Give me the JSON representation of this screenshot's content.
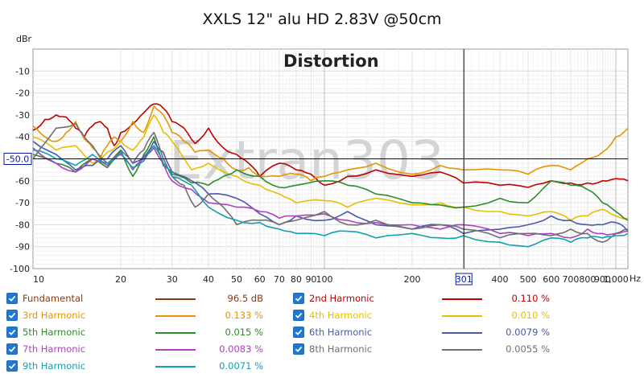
{
  "chart_data": {
    "type": "line",
    "title": "XXLS 12\" alu HD 2.83V @50cm",
    "annotation": "Distortion",
    "watermark": "Extran303",
    "ylabel": "dBr",
    "xunit": "Hz",
    "xscale": "log",
    "xlim": [
      10,
      1100
    ],
    "ylim": [
      -100,
      0
    ],
    "grid": true,
    "xticks": [
      10,
      20,
      30,
      40,
      50,
      60,
      70,
      80,
      90,
      100,
      200,
      300,
      400,
      500,
      600,
      700,
      800,
      900,
      1000
    ],
    "xtick_labels": [
      "10",
      "20",
      "30",
      "40",
      "50",
      "60",
      "70",
      "80",
      "90",
      "100",
      "200",
      "",
      "400",
      "500",
      "600",
      "700",
      "800",
      "900",
      "1,000"
    ],
    "yticks": [
      -10,
      -20,
      -30,
      -40,
      -60,
      -70,
      -80,
      -90,
      -100
    ],
    "cursor": {
      "x": 301,
      "y": -50.0,
      "x_label": "301",
      "y_label": "-50.0"
    },
    "series": [
      {
        "name": "2nd Harmonic",
        "color": "#c00000",
        "x": [
          10,
          11,
          12,
          13,
          14,
          15,
          16,
          17,
          18,
          19,
          20,
          22,
          24,
          26,
          28,
          30,
          33,
          36,
          40,
          45,
          50,
          55,
          60,
          70,
          80,
          90,
          100,
          120,
          150,
          200,
          250,
          300,
          400,
          500,
          600,
          700,
          800,
          900,
          1000,
          1100
        ],
        "values": [
          -37,
          -32,
          -30,
          -31,
          -36,
          -40,
          -35,
          -33,
          -36,
          -44,
          -38,
          -34,
          -29,
          -25,
          -27,
          -33,
          -36,
          -43,
          -36,
          -45,
          -48,
          -52,
          -58,
          -52,
          -55,
          -57,
          -62,
          -58,
          -55,
          -58,
          -56,
          -61,
          -62,
          -63,
          -60,
          -61,
          -61,
          -60,
          -59,
          -60
        ]
      },
      {
        "name": "3rd Harmonic",
        "color": "#e69500",
        "x": [
          10,
          11,
          12,
          13,
          14,
          15,
          16,
          17,
          18,
          19,
          20,
          22,
          24,
          26,
          28,
          30,
          33,
          36,
          40,
          45,
          50,
          55,
          60,
          70,
          80,
          90,
          100,
          120,
          150,
          200,
          250,
          300,
          400,
          500,
          600,
          700,
          800,
          900,
          1000,
          1100
        ],
        "values": [
          -35,
          -40,
          -42,
          -38,
          -33,
          -41,
          -45,
          -50,
          -44,
          -40,
          -42,
          -33,
          -38,
          -26,
          -30,
          -38,
          -42,
          -47,
          -46,
          -50,
          -55,
          -54,
          -58,
          -58,
          -57,
          -60,
          -58,
          -55,
          -52,
          -57,
          -53,
          -55,
          -55,
          -57,
          -53,
          -55,
          -50,
          -47,
          -40,
          -36
        ]
      },
      {
        "name": "4th Harmonic",
        "color": "#e6c000",
        "x": [
          10,
          12,
          14,
          16,
          18,
          20,
          22,
          24,
          26,
          28,
          30,
          35,
          40,
          50,
          60,
          70,
          80,
          100,
          120,
          150,
          200,
          250,
          300,
          400,
          500,
          600,
          700,
          800,
          900,
          1000,
          1100
        ],
        "values": [
          -40,
          -46,
          -44,
          -52,
          -47,
          -42,
          -46,
          -40,
          -30,
          -38,
          -42,
          -55,
          -52,
          -58,
          -62,
          -66,
          -70,
          -69,
          -72,
          -68,
          -71,
          -70,
          -72,
          -74,
          -76,
          -74,
          -78,
          -76,
          -73,
          -76,
          -77
        ]
      },
      {
        "name": "5th Harmonic",
        "color": "#2e8b2e",
        "x": [
          10,
          12,
          14,
          16,
          18,
          20,
          22,
          24,
          26,
          28,
          30,
          35,
          40,
          45,
          50,
          60,
          70,
          80,
          100,
          120,
          150,
          200,
          250,
          300,
          400,
          500,
          600,
          700,
          800,
          900,
          1000,
          1100
        ],
        "values": [
          -48,
          -52,
          -56,
          -50,
          -54,
          -46,
          -58,
          -48,
          -40,
          -53,
          -57,
          -61,
          -62,
          -58,
          -55,
          -58,
          -63,
          -62,
          -60,
          -62,
          -66,
          -70,
          -71,
          -72,
          -68,
          -70,
          -60,
          -62,
          -64,
          -70,
          -74,
          -78
        ]
      },
      {
        "name": "6th Harmonic",
        "color": "#4a5aa8",
        "x": [
          10,
          12,
          14,
          16,
          18,
          20,
          22,
          24,
          26,
          28,
          30,
          35,
          40,
          50,
          60,
          70,
          80,
          100,
          120,
          150,
          200,
          250,
          300,
          400,
          500,
          600,
          700,
          800,
          900,
          1000,
          1100
        ],
        "values": [
          -42,
          -48,
          -55,
          -53,
          -50,
          -44,
          -52,
          -49,
          -42,
          -47,
          -56,
          -60,
          -66,
          -68,
          -75,
          -80,
          -76,
          -78,
          -74,
          -80,
          -82,
          -80,
          -84,
          -82,
          -80,
          -76,
          -78,
          -80,
          -80,
          -79,
          -83
        ]
      },
      {
        "name": "7th Harmonic",
        "color": "#b040c0",
        "x": [
          10,
          12,
          14,
          16,
          18,
          20,
          22,
          24,
          26,
          28,
          30,
          35,
          40,
          50,
          60,
          70,
          80,
          100,
          120,
          150,
          200,
          250,
          300,
          400,
          500,
          600,
          700,
          800,
          900,
          1000,
          1100
        ],
        "values": [
          -45,
          -52,
          -56,
          -50,
          -53,
          -48,
          -55,
          -50,
          -45,
          -52,
          -60,
          -64,
          -70,
          -72,
          -74,
          -77,
          -76,
          -75,
          -78,
          -79,
          -80,
          -82,
          -80,
          -84,
          -85,
          -84,
          -86,
          -82,
          -84,
          -84,
          -83
        ]
      },
      {
        "name": "8th Harmonic",
        "color": "#707070",
        "x": [
          10,
          12,
          14,
          16,
          18,
          20,
          22,
          24,
          26,
          28,
          30,
          33,
          36,
          40,
          45,
          50,
          60,
          70,
          80,
          100,
          120,
          150,
          200,
          250,
          300,
          400,
          500,
          600,
          700,
          800,
          900,
          1000,
          1100
        ],
        "values": [
          -50,
          -36,
          -34,
          -44,
          -52,
          -46,
          -52,
          -46,
          -38,
          -50,
          -58,
          -62,
          -72,
          -66,
          -72,
          -80,
          -78,
          -80,
          -78,
          -74,
          -80,
          -78,
          -82,
          -80,
          -82,
          -86,
          -84,
          -85,
          -82,
          -84,
          -88,
          -84,
          -82
        ]
      },
      {
        "name": "9th Harmonic",
        "color": "#10a0b0",
        "x": [
          10,
          12,
          14,
          16,
          18,
          20,
          22,
          24,
          26,
          28,
          30,
          35,
          40,
          50,
          60,
          70,
          80,
          100,
          120,
          150,
          200,
          250,
          300,
          400,
          500,
          600,
          700,
          800,
          900,
          1000,
          1100
        ],
        "values": [
          -46,
          -50,
          -53,
          -48,
          -52,
          -47,
          -54,
          -51,
          -44,
          -52,
          -58,
          -62,
          -72,
          -78,
          -79,
          -82,
          -84,
          -85,
          -83,
          -86,
          -84,
          -86,
          -85,
          -88,
          -90,
          -86,
          -88,
          -86,
          -86,
          -85,
          -84
        ]
      }
    ]
  },
  "legend": [
    {
      "name": "Fundamental",
      "value": "96.5 dB",
      "color": "#8b3a0f",
      "checked": true
    },
    {
      "name": "2nd Harmonic",
      "value": "0.110 %",
      "color": "#c00000",
      "checked": true
    },
    {
      "name": "3rd Harmonic",
      "value": "0.133 %",
      "color": "#e69500",
      "checked": true
    },
    {
      "name": "4th Harmonic",
      "value": "0.010 %",
      "color": "#e6c000",
      "checked": true
    },
    {
      "name": "5th Harmonic",
      "value": "0.015 %",
      "color": "#2e8b2e",
      "checked": true
    },
    {
      "name": "6th Harmonic",
      "value": "0.0079 %",
      "color": "#4a5aa8",
      "checked": true
    },
    {
      "name": "7th Harmonic",
      "value": "0.0083 %",
      "color": "#b040c0",
      "checked": true
    },
    {
      "name": "8th Harmonic",
      "value": "0.0055 %",
      "color": "#707070",
      "checked": true
    },
    {
      "name": "9th Harmonic",
      "value": "0.0071 %",
      "color": "#10a0b0",
      "checked": true
    }
  ]
}
